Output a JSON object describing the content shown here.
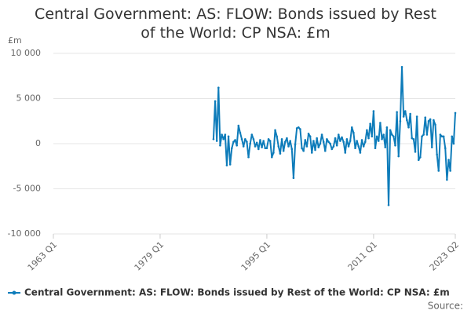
{
  "chart_data": {
    "type": "line",
    "title": "Central Government: AS: FLOW: Bonds issued by Rest of the World: CP NSA: £m",
    "y_label": "£m",
    "source": "Source:",
    "xlim": [
      1963,
      2023.25
    ],
    "xticks": [
      {
        "value": 1963,
        "label": "1963 Q1"
      },
      {
        "value": 1979,
        "label": "1979 Q1"
      },
      {
        "value": 1995,
        "label": "1995 Q1"
      },
      {
        "value": 2011,
        "label": "2011 Q1"
      },
      {
        "value": 2023.25,
        "label": "2023 Q2"
      }
    ],
    "ylim": [
      -10000,
      10000
    ],
    "yticks": [
      {
        "value": -10000,
        "label": "-10 000"
      },
      {
        "value": -5000,
        "label": "-5 000"
      },
      0,
      {
        "value": 5000,
        "label": "5 000"
      },
      {
        "value": 10000,
        "label": "10 000"
      }
    ],
    "grid": true,
    "legend": "bottom",
    "x": [
      1987,
      1987.25,
      1987.5,
      1987.75,
      1988,
      1988.25,
      1988.5,
      1988.75,
      1989,
      1989.25,
      1989.5,
      1989.75,
      1990,
      1990.25,
      1990.5,
      1990.75,
      1991,
      1991.25,
      1991.5,
      1991.75,
      1992,
      1992.25,
      1992.5,
      1992.75,
      1993,
      1993.25,
      1993.5,
      1993.75,
      1994,
      1994.25,
      1994.5,
      1994.75,
      1995,
      1995.25,
      1995.5,
      1995.75,
      1996,
      1996.25,
      1996.5,
      1996.75,
      1997,
      1997.25,
      1997.5,
      1997.75,
      1998,
      1998.25,
      1998.5,
      1998.75,
      1999,
      1999.25,
      1999.5,
      1999.75,
      2000,
      2000.25,
      2000.5,
      2000.75,
      2001,
      2001.25,
      2001.5,
      2001.75,
      2002,
      2002.25,
      2002.5,
      2002.75,
      2003,
      2003.25,
      2003.5,
      2003.75,
      2004,
      2004.25,
      2004.5,
      2004.75,
      2005,
      2005.25,
      2005.5,
      2005.75,
      2006,
      2006.25,
      2006.5,
      2006.75,
      2007,
      2007.25,
      2007.5,
      2007.75,
      2008,
      2008.25,
      2008.5,
      2008.75,
      2009,
      2009.25,
      2009.5,
      2009.75,
      2010,
      2010.25,
      2010.5,
      2010.75,
      2011,
      2011.25,
      2011.5,
      2011.75,
      2012,
      2012.25,
      2012.5,
      2012.75,
      2013,
      2013.25,
      2013.5,
      2013.75,
      2014,
      2014.25,
      2014.5,
      2014.75,
      2015,
      2015.25,
      2015.5,
      2015.75,
      2016,
      2016.25,
      2016.5,
      2016.75,
      2017,
      2017.25,
      2017.5,
      2017.75,
      2018,
      2018.25,
      2018.5,
      2018.75,
      2019,
      2019.25,
      2019.5,
      2019.75,
      2020,
      2020.25,
      2020.5,
      2020.75,
      2021,
      2021.25,
      2021.5,
      2021.75,
      2022,
      2022.25,
      2022.5,
      2022.75,
      2023,
      2023.25
    ],
    "series": [
      {
        "name": "Central Government: AS: FLOW: Bonds issued by Rest of the World: CP NSA: £m",
        "color": "#0e7cba",
        "values": [
          500,
          4700,
          300,
          6200,
          -200,
          1000,
          500,
          1000,
          -2400,
          800,
          -2300,
          -500,
          200,
          400,
          -200,
          2000,
          1200,
          500,
          -300,
          500,
          200,
          -1500,
          0,
          1000,
          500,
          -300,
          100,
          -600,
          400,
          -400,
          300,
          -500,
          -500,
          500,
          300,
          -1500,
          -1000,
          1500,
          800,
          -300,
          -1100,
          500,
          -800,
          200,
          600,
          -300,
          300,
          -600,
          -3800,
          -100,
          1700,
          1800,
          1600,
          -500,
          -800,
          400,
          -300,
          1100,
          800,
          -1000,
          300,
          -700,
          600,
          -400,
          0,
          1000,
          200,
          -800,
          500,
          200,
          0,
          -600,
          -300,
          600,
          -200,
          1000,
          300,
          700,
          200,
          -1000,
          500,
          -300,
          300,
          1800,
          1200,
          -500,
          300,
          -300,
          -1000,
          400,
          -300,
          200,
          1500,
          600,
          2200,
          800,
          3600,
          -500,
          800,
          300,
          2300,
          500,
          1000,
          -400,
          1800,
          -6800,
          1500,
          1000,
          800,
          -200,
          3500,
          -1400,
          2500,
          8500,
          3000,
          3600,
          2600,
          1800,
          3300,
          600,
          500,
          -900,
          3000,
          -1800,
          -1500,
          800,
          1000,
          2900,
          1000,
          2500,
          2700,
          -400,
          2600,
          2100,
          -1200,
          -3000,
          1000,
          800,
          800,
          -500,
          -4000,
          -1800,
          -3000,
          800,
          0,
          3400
        ]
      }
    ]
  }
}
